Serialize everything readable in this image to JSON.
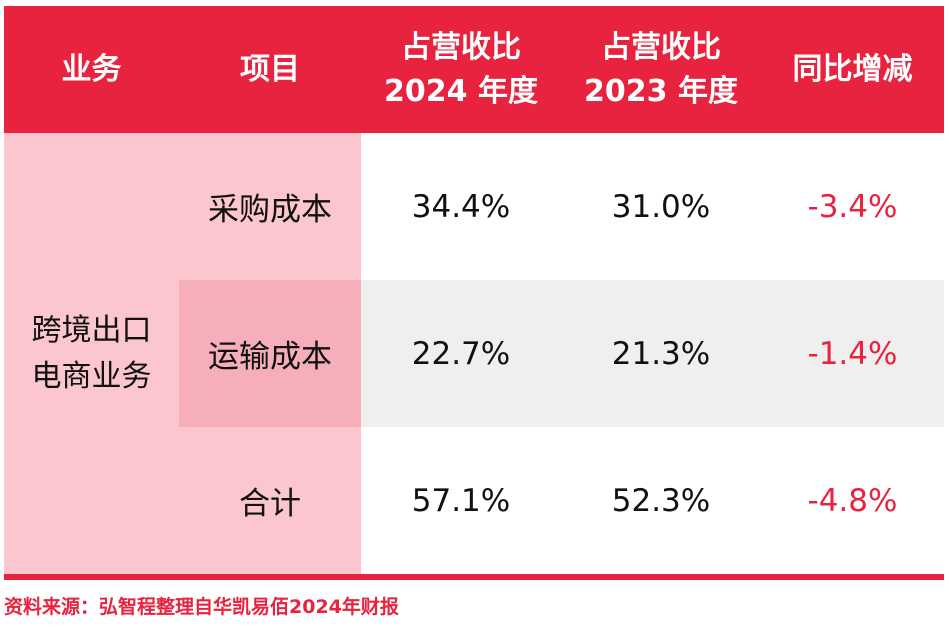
{
  "header": {
    "col_business": "业务",
    "col_item": "项目",
    "col_2024_line1": "占营收比",
    "col_2024_line2": "2024 年度",
    "col_2023_line1": "占营收比",
    "col_2023_line2": "2023 年度",
    "col_yoy": "同比增减"
  },
  "business": {
    "line1": "跨境出口",
    "line2": "电商业务"
  },
  "rows": [
    {
      "item": "采购成本",
      "y2024": "34.4%",
      "y2023": "31.0%",
      "yoy": "-3.4%"
    },
    {
      "item": "运输成本",
      "y2024": "22.7%",
      "y2023": "21.3%",
      "yoy": "-1.4%"
    },
    {
      "item": "合计",
      "y2024": "57.1%",
      "y2023": "52.3%",
      "yoy": "-4.8%"
    }
  ],
  "source": "资料来源：弘智程整理自华凯易佰2024年财报",
  "colors": {
    "accent_red": "#e8233f",
    "pink_light": "#fbc6cd",
    "pink_dark": "#f7aebb",
    "row_gray": "#efefef"
  }
}
